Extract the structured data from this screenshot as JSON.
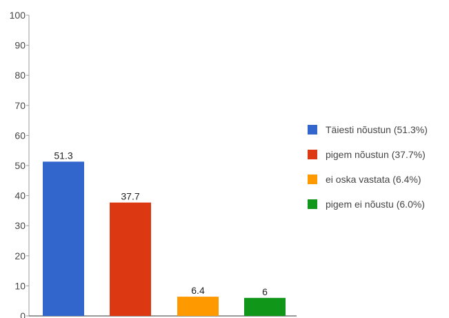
{
  "chart_data": {
    "type": "bar",
    "categories": [
      "Täiesti nõustun",
      "pigem nõustun",
      "ei oska vastata",
      "pigem ei nõustu"
    ],
    "values": [
      51.3,
      37.7,
      6.4,
      6
    ],
    "data_labels": [
      "51.3",
      "37.7",
      "6.4",
      "6"
    ],
    "colors": [
      "#3366CC",
      "#DC3912",
      "#FF9900",
      "#109618"
    ],
    "ylim": [
      0,
      100
    ],
    "yticks": [
      0,
      10,
      20,
      30,
      40,
      50,
      60,
      70,
      80,
      90,
      100
    ],
    "title": "",
    "xlabel": "",
    "ylabel": "",
    "grid": false,
    "legend": {
      "placement": "right",
      "entries": [
        "Täiesti nõustun  (51.3%)",
        "pigem nõustun  (37.7%)",
        "ei oska vastata (6.4%)",
        "pigem ei nõustu (6.0%)"
      ]
    }
  }
}
